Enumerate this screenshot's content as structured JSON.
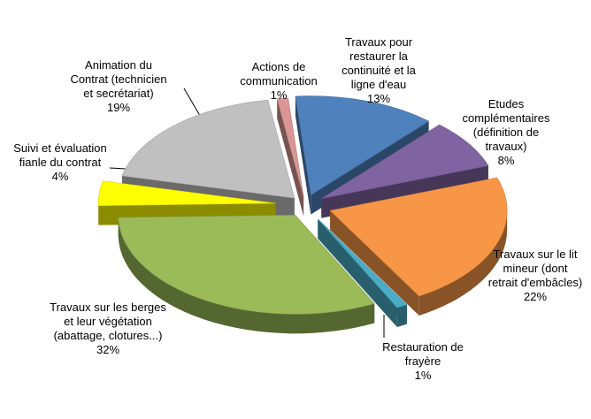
{
  "chart_data": {
    "type": "pie",
    "title": "",
    "legend": "none",
    "slices": [
      {
        "lines": [
          "Travaux pour",
          "restaurer la",
          "continuité  et la",
          "ligne d'eau"
        ],
        "pct": "13%",
        "value": 13,
        "color": "#4F81BD"
      },
      {
        "lines": [
          "Etudes",
          "complémentaires",
          "(définition de",
          "travaux)"
        ],
        "pct": "8%",
        "value": 8,
        "color": "#8064A2"
      },
      {
        "lines": [
          "Travaux sur le lit",
          "mineur (dont",
          "retrait d'embâcles)"
        ],
        "pct": "22%",
        "value": 22,
        "color": "#F79646"
      },
      {
        "lines": [
          "Restauration de",
          "frayère"
        ],
        "pct": "1%",
        "value": 1,
        "color": "#4BACC6"
      },
      {
        "lines": [
          "Travaux sur les berges",
          "et leur végétation",
          "(abattage, clotures...)"
        ],
        "pct": "32%",
        "value": 32,
        "color": "#9BBB59"
      },
      {
        "lines": [
          "Suivi et évaluation",
          "fianle du contrat"
        ],
        "pct": "4%",
        "value": 4,
        "color": "#FFFF00"
      },
      {
        "lines": [
          "Animation du",
          "Contrat (technicien",
          "et secrétariat)"
        ],
        "pct": "19%",
        "value": 19,
        "color": "#C0C0C0"
      },
      {
        "lines": [
          "Actions de",
          "communication"
        ],
        "pct": "1%",
        "value": 1,
        "color": "#D99694"
      }
    ]
  }
}
